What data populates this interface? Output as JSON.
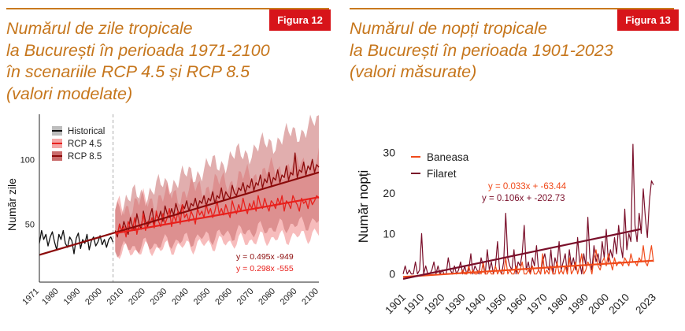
{
  "figure12": {
    "badge": "Figura 12",
    "title_lines": [
      "Numărul de zile tropicale",
      "la București în perioada 1971-2100",
      "în scenariile RCP 4.5 și RCP 8.5",
      "(valori modelate)"
    ],
    "colors": {
      "historical": "#111111",
      "rcp45": "#e8201c",
      "rcp85": "#8b0a0a",
      "rcp45_band": "#f4a6a6",
      "rcp85_band": "#c96b6b",
      "accent": "#c6761c"
    }
  },
  "figure13": {
    "badge": "Figura 13",
    "title_lines": [
      "Numărul de nopți tropicale",
      "la București în perioada 1901-2023",
      "(valori măsurate)"
    ],
    "colors": {
      "baneasa": "#f04a1a",
      "filaret": "#7a0f2a"
    }
  },
  "chart_data": [
    {
      "type": "line",
      "ylabel": "Număr zile",
      "xlim": [
        1971,
        2100
      ],
      "ylim": [
        5,
        135
      ],
      "x_ticks": [
        1971,
        1980,
        1990,
        2000,
        2010,
        2020,
        2030,
        2040,
        2050,
        2060,
        2070,
        2080,
        2090,
        2100
      ],
      "y_ticks": [
        50,
        100
      ],
      "divider_year": 2005,
      "legend": [
        "Historical",
        "RCP 4.5",
        "RCP 8.5"
      ],
      "legend_position": "top-left",
      "series": [
        {
          "name": "Historical",
          "x_start": 1971,
          "values": [
            35,
            45,
            38,
            42,
            33,
            40,
            44,
            36,
            30,
            42,
            38,
            45,
            35,
            32,
            40,
            37,
            27,
            39,
            43,
            31,
            38,
            35,
            42,
            30,
            37,
            40,
            33,
            36,
            41,
            34,
            38,
            32,
            38,
            40,
            36
          ]
        },
        {
          "name": "RCP 4.5",
          "x_start": 2006,
          "values": [
            44,
            42,
            50,
            45,
            48,
            40,
            52,
            47,
            45,
            55,
            42,
            50,
            48,
            58,
            45,
            52,
            50,
            55,
            47,
            60,
            52,
            48,
            58,
            50,
            55,
            62,
            48,
            57,
            52,
            60,
            50,
            65,
            55,
            58,
            52,
            60,
            56,
            50,
            62,
            57,
            60,
            55,
            65,
            58,
            62,
            55,
            60,
            68,
            58,
            62,
            57,
            65,
            60,
            55,
            68,
            62,
            58,
            65,
            60,
            70,
            63,
            58,
            66,
            62,
            68,
            60,
            72,
            65,
            62,
            70,
            64,
            60,
            68,
            66,
            62,
            70,
            65,
            72,
            60,
            68,
            66,
            62,
            72,
            68,
            65,
            60,
            70,
            66,
            68,
            62,
            70,
            65,
            68,
            72,
            70
          ]
        },
        {
          "name": "RCP 8.5",
          "x_start": 2006,
          "values": [
            45,
            40,
            50,
            44,
            52,
            47,
            42,
            55,
            48,
            45,
            58,
            50,
            46,
            60,
            52,
            48,
            56,
            62,
            50,
            58,
            54,
            60,
            52,
            64,
            58,
            55,
            62,
            57,
            66,
            60,
            58,
            65,
            62,
            68,
            60,
            66,
            64,
            70,
            62,
            68,
            66,
            72,
            64,
            70,
            68,
            75,
            66,
            72,
            70,
            78,
            68,
            75,
            72,
            70,
            80,
            74,
            72,
            78,
            76,
            82,
            74,
            80,
            78,
            85,
            76,
            82,
            80,
            88,
            78,
            85,
            82,
            90,
            80,
            86,
            84,
            92,
            82,
            88,
            86,
            95,
            84,
            90,
            88,
            105,
            86,
            92,
            90,
            98,
            88,
            95,
            92,
            100,
            90,
            96,
            94
          ]
        }
      ],
      "bands": [
        {
          "name": "RCP 4.5",
          "lower_start": 28,
          "lower_end": 42,
          "upper_start": 62,
          "upper_end": 100
        },
        {
          "name": "RCP 8.5",
          "lower_start": 30,
          "lower_end": 52,
          "upper_start": 65,
          "upper_end": 128
        }
      ],
      "trendlines": [
        {
          "series": "RCP 8.5",
          "label": "y = 0.495x -949",
          "x_from": 1971,
          "x_to": 2100,
          "y_from": 26.1,
          "y_to": 90.0
        },
        {
          "series": "RCP 4.5",
          "label": "y = 0.298x -555",
          "x_from": 2006,
          "x_to": 2100,
          "y_from": 42.8,
          "y_to": 70.8
        }
      ]
    },
    {
      "type": "line",
      "ylabel": "Număr nopți",
      "xlim": [
        1901,
        2023
      ],
      "ylim": [
        -2,
        33
      ],
      "x_ticks": [
        1901,
        1910,
        1920,
        1930,
        1940,
        1950,
        1960,
        1970,
        1980,
        1990,
        2000,
        2010,
        2023
      ],
      "y_ticks": [
        0,
        10,
        20,
        30
      ],
      "legend": [
        "Baneasa",
        "Filaret"
      ],
      "legend_position": "top-left",
      "series": [
        {
          "name": "Baneasa",
          "x_start": 1929,
          "values": [
            0,
            1,
            0,
            0,
            2,
            0,
            1,
            0,
            0,
            1,
            0,
            3,
            0,
            0,
            1,
            0,
            0,
            2,
            0,
            1,
            0,
            0,
            4,
            0,
            1,
            0,
            0,
            2,
            0,
            1,
            3,
            0,
            0,
            1,
            0,
            2,
            0,
            0,
            1,
            0,
            5,
            0,
            1,
            0,
            2,
            0,
            0,
            3,
            0,
            1,
            0,
            2,
            0,
            4,
            0,
            1,
            3,
            0,
            2,
            5,
            0,
            1,
            3,
            2,
            0,
            4,
            6,
            2,
            1,
            3,
            4,
            2,
            5,
            3,
            1,
            4,
            2,
            3,
            3,
            2,
            4,
            3,
            2,
            5,
            3,
            3,
            2,
            4,
            3,
            7,
            3,
            2,
            4,
            7,
            3
          ]
        },
        {
          "name": "Filaret",
          "x_start": 1901,
          "values": [
            0,
            2,
            0,
            1,
            0,
            0,
            3,
            0,
            1,
            10,
            0,
            2,
            0,
            0,
            1,
            3,
            0,
            2,
            0,
            1,
            0,
            0,
            4,
            1,
            0,
            2,
            0,
            1,
            3,
            0,
            2,
            0,
            1,
            5,
            0,
            2,
            1,
            0,
            4,
            2,
            0,
            6,
            1,
            3,
            0,
            2,
            8,
            1,
            0,
            3,
            15,
            4,
            2,
            1,
            6,
            0,
            3,
            2,
            5,
            12,
            1,
            3,
            0,
            4,
            2,
            7,
            1,
            0,
            3,
            5,
            2,
            1,
            6,
            0,
            4,
            2,
            8,
            1,
            3,
            5,
            0,
            6,
            2,
            4,
            1,
            9,
            3,
            0,
            5,
            2,
            14,
            4,
            1,
            7,
            3,
            5,
            2,
            8,
            4,
            11,
            3,
            6,
            4,
            9,
            5,
            12,
            7,
            4,
            16,
            6,
            10,
            8,
            32,
            12,
            8,
            15,
            10,
            21,
            14,
            9,
            18,
            23,
            22
          ]
        }
      ],
      "trendlines": [
        {
          "series": "Baneasa",
          "label": "y = 0.033x + -63.44",
          "x_from": 1901,
          "x_to": 2023,
          "y_from": -0.7,
          "y_to": 3.3
        },
        {
          "series": "Filaret",
          "label": "y = 0.106x + -202.73",
          "x_from": 1901,
          "x_to": 2017,
          "y_from": -1.2,
          "y_to": 11.1
        }
      ]
    }
  ]
}
